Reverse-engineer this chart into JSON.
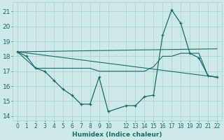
{
  "xlabel": "Humidex (Indice chaleur)",
  "x_ticks": [
    0,
    1,
    2,
    3,
    4,
    5,
    6,
    7,
    8,
    9,
    10,
    12,
    13,
    14,
    15,
    16,
    17,
    18,
    19,
    20,
    21,
    22
  ],
  "ylim": [
    13.7,
    21.6
  ],
  "yticks": [
    14,
    15,
    16,
    17,
    18,
    19,
    20,
    21
  ],
  "bg_color": "#cce9e8",
  "grid_color": "#aacfce",
  "line_color": "#1a6b6b",
  "line1_x": [
    0,
    1,
    2,
    3,
    4,
    5,
    6,
    7,
    8,
    9,
    10,
    12,
    13,
    14,
    15,
    16,
    17,
    18,
    19,
    20,
    21,
    22
  ],
  "line1_y": [
    18.3,
    18.0,
    17.2,
    17.0,
    16.4,
    15.8,
    15.4,
    14.8,
    14.8,
    16.6,
    14.3,
    14.7,
    14.7,
    15.3,
    15.4,
    19.4,
    21.1,
    20.2,
    18.2,
    17.9,
    16.7,
    16.6
  ],
  "line2_x": [
    0,
    2,
    3,
    4,
    5,
    6,
    7,
    8,
    9,
    10,
    12,
    13,
    14,
    15,
    16,
    17,
    18,
    19,
    20,
    21,
    22
  ],
  "line2_y": [
    18.3,
    17.2,
    17.2,
    17.2,
    17.2,
    17.2,
    17.2,
    17.2,
    17.0,
    17.0,
    17.0,
    17.0,
    17.0,
    17.3,
    18.0,
    18.0,
    18.2,
    18.2,
    18.2,
    16.7,
    16.6
  ],
  "line3_x": [
    0,
    22
  ],
  "line3_y": [
    18.3,
    18.5
  ],
  "line4_x": [
    0,
    22
  ],
  "line4_y": [
    18.3,
    16.6
  ]
}
